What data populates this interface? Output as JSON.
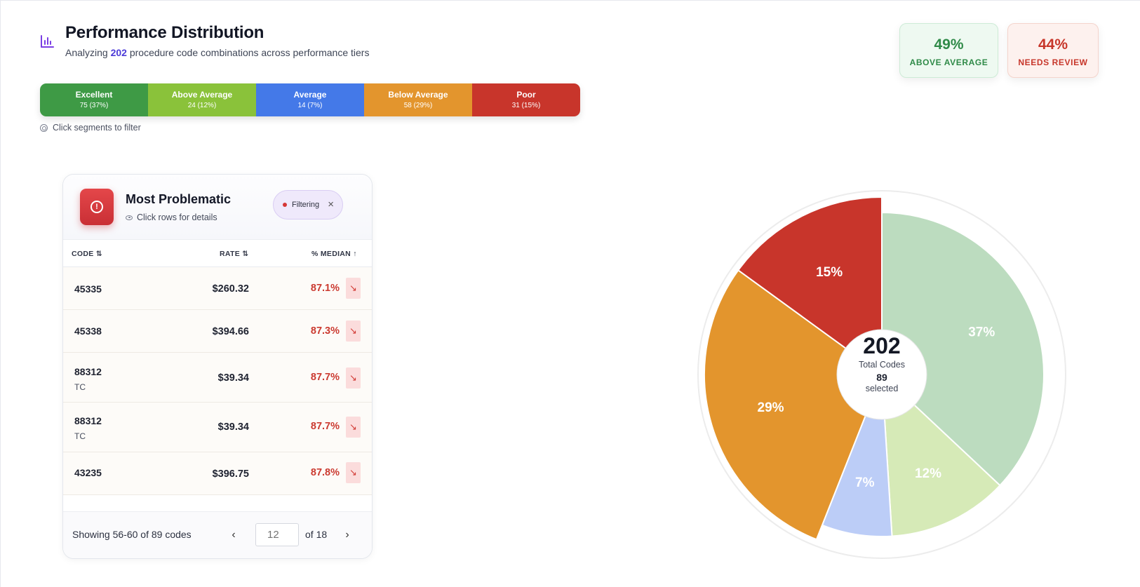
{
  "header": {
    "title": "Performance Distribution",
    "subtitle_prefix": "Analyzing ",
    "subtitle_count": "202",
    "subtitle_suffix": " procedure code combinations across performance tiers"
  },
  "kpis": [
    {
      "value": "49%",
      "label": "ABOVE AVERAGE"
    },
    {
      "value": "44%",
      "label": "NEEDS REVIEW"
    }
  ],
  "segments": [
    {
      "name": "Excellent",
      "count": "75 (37%)",
      "color": "#3e9a45"
    },
    {
      "name": "Above Average",
      "count": "24 (12%)",
      "color": "#8ac23a"
    },
    {
      "name": "Average",
      "count": "14 (7%)",
      "color": "#4479e8"
    },
    {
      "name": "Below Average",
      "count": "58 (29%)",
      "color": "#e3952d"
    },
    {
      "name": "Poor",
      "count": "31 (15%)",
      "color": "#c8352b"
    }
  ],
  "hint": "Click segments to filter",
  "problematic": {
    "title": "Most Problematic",
    "subtitle": "Click rows for details",
    "chip_label": "Filtering",
    "columns": [
      "CODE",
      "RATE",
      "% MEDIAN"
    ],
    "rows": [
      {
        "code": "45335",
        "modifier": "",
        "rate": "$260.32",
        "pct": "87.1%"
      },
      {
        "code": "45338",
        "modifier": "",
        "rate": "$394.66",
        "pct": "87.3%"
      },
      {
        "code": "88312",
        "modifier": "TC",
        "rate": "$39.34",
        "pct": "87.7%"
      },
      {
        "code": "88312",
        "modifier": "TC",
        "rate": "$39.34",
        "pct": "87.7%"
      },
      {
        "code": "43235",
        "modifier": "",
        "rate": "$396.75",
        "pct": "87.8%"
      }
    ],
    "footer": {
      "showing": "Showing 56-60 of 89 codes",
      "page_placeholder": "12",
      "of_pages": "of 18"
    }
  },
  "chart_data": {
    "type": "pie",
    "center_total": "202",
    "center_label": "Total Codes",
    "center_selected": "89",
    "center_selected_label": "selected",
    "slices": [
      {
        "name": "Excellent",
        "value": 37,
        "label": "37%",
        "color": "#bcdcbf",
        "selected": false
      },
      {
        "name": "Above Average",
        "value": 12,
        "label": "12%",
        "color": "#d6eab7",
        "selected": false
      },
      {
        "name": "Average",
        "value": 7,
        "label": "7%",
        "color": "#bccdf7",
        "selected": false
      },
      {
        "name": "Below Average",
        "value": 29,
        "label": "29%",
        "color": "#e3952d",
        "selected": true
      },
      {
        "name": "Poor",
        "value": 15,
        "label": "15%",
        "color": "#c8352b",
        "selected": true
      }
    ]
  }
}
